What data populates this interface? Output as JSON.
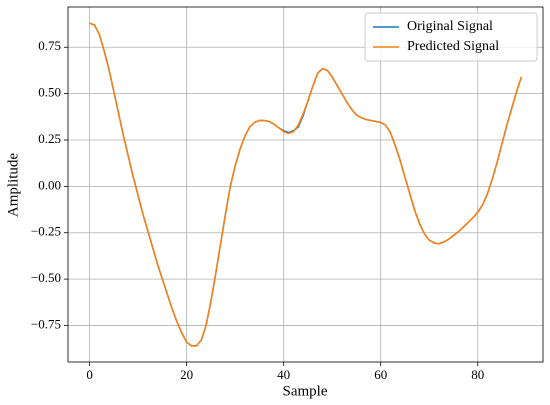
{
  "chart_data": {
    "type": "line",
    "xlabel": "Sample",
    "ylabel": "Amplitude",
    "x": [
      0,
      1,
      2,
      3,
      4,
      5,
      6,
      7,
      8,
      9,
      10,
      11,
      12,
      13,
      14,
      15,
      16,
      17,
      18,
      19,
      20,
      21,
      22,
      23,
      24,
      25,
      26,
      27,
      28,
      29,
      30,
      31,
      32,
      33,
      34,
      35,
      36,
      37,
      38,
      39,
      40,
      41,
      42,
      43,
      44,
      45,
      46,
      47,
      48,
      49,
      50,
      51,
      52,
      53,
      54,
      55,
      56,
      57,
      58,
      59,
      60,
      61,
      62,
      63,
      64,
      65,
      66,
      67,
      68,
      69,
      70,
      71,
      72,
      73,
      74,
      75,
      76,
      77,
      78,
      79,
      80,
      81,
      82,
      83,
      84,
      85,
      86,
      87,
      88,
      89
    ],
    "series": [
      {
        "name": "Original Signal",
        "color": "#1f77b4",
        "values": [
          0.88,
          0.87,
          0.82,
          0.73,
          0.63,
          0.51,
          0.39,
          0.27,
          0.16,
          0.05,
          -0.05,
          -0.15,
          -0.24,
          -0.33,
          -0.42,
          -0.5,
          -0.58,
          -0.66,
          -0.73,
          -0.79,
          -0.84,
          -0.86,
          -0.86,
          -0.83,
          -0.75,
          -0.62,
          -0.47,
          -0.31,
          -0.15,
          0.0,
          0.11,
          0.2,
          0.27,
          0.32,
          0.345,
          0.355,
          0.355,
          0.35,
          0.335,
          0.315,
          0.3,
          0.29,
          0.3,
          0.32,
          0.38,
          0.46,
          0.54,
          0.61,
          0.635,
          0.625,
          0.59,
          0.545,
          0.5,
          0.455,
          0.415,
          0.385,
          0.37,
          0.36,
          0.355,
          0.35,
          0.345,
          0.33,
          0.29,
          0.22,
          0.14,
          0.05,
          -0.04,
          -0.13,
          -0.2,
          -0.255,
          -0.29,
          -0.305,
          -0.31,
          -0.3,
          -0.285,
          -0.265,
          -0.245,
          -0.22,
          -0.195,
          -0.17,
          -0.14,
          -0.1,
          -0.04,
          0.04,
          0.13,
          0.23,
          0.33,
          0.42,
          0.51,
          0.59
        ]
      },
      {
        "name": "Predicted Signal",
        "color": "#ff7f0e",
        "values": [
          0.88,
          0.87,
          0.82,
          0.73,
          0.63,
          0.51,
          0.39,
          0.27,
          0.16,
          0.05,
          -0.05,
          -0.15,
          -0.24,
          -0.33,
          -0.42,
          -0.5,
          -0.58,
          -0.66,
          -0.73,
          -0.79,
          -0.84,
          -0.86,
          -0.86,
          -0.83,
          -0.75,
          -0.62,
          -0.47,
          -0.31,
          -0.15,
          0.0,
          0.11,
          0.2,
          0.27,
          0.32,
          0.345,
          0.355,
          0.355,
          0.35,
          0.335,
          0.315,
          0.295,
          0.285,
          0.295,
          0.33,
          0.39,
          0.46,
          0.54,
          0.61,
          0.635,
          0.625,
          0.59,
          0.545,
          0.5,
          0.455,
          0.415,
          0.385,
          0.37,
          0.36,
          0.355,
          0.35,
          0.345,
          0.33,
          0.29,
          0.22,
          0.14,
          0.05,
          -0.04,
          -0.13,
          -0.2,
          -0.255,
          -0.29,
          -0.305,
          -0.31,
          -0.3,
          -0.285,
          -0.265,
          -0.245,
          -0.22,
          -0.195,
          -0.17,
          -0.14,
          -0.1,
          -0.04,
          0.04,
          0.13,
          0.23,
          0.33,
          0.42,
          0.51,
          0.59
        ]
      }
    ],
    "xlim": [
      -4.45,
      93.45
    ],
    "xticks": [
      0,
      20,
      40,
      60,
      80
    ],
    "ylim": [
      -0.947,
      0.967
    ],
    "yticks": [
      {
        "value": -0.75,
        "label": "−0.75"
      },
      {
        "value": -0.5,
        "label": "−0.50"
      },
      {
        "value": -0.25,
        "label": "−0.25"
      },
      {
        "value": 0,
        "label": "0.00"
      },
      {
        "value": 0.25,
        "label": "0.25"
      },
      {
        "value": 0.5,
        "label": "0.50"
      },
      {
        "value": 0.75,
        "label": "0.75"
      }
    ],
    "grid": true,
    "legend": "upper right"
  }
}
